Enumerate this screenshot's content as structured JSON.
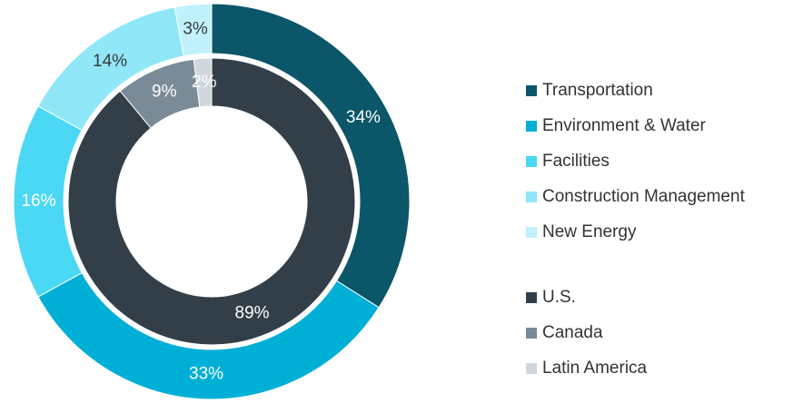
{
  "chart_data": {
    "type": "donut",
    "rings": [
      {
        "categories": [
          "Transportation",
          "Environment & Water",
          "Facilities",
          "Construction Management",
          "New Energy"
        ],
        "values": [
          34,
          33,
          16,
          14,
          3
        ],
        "value_labels": [
          "34%",
          "33%",
          "16%",
          "14%",
          "3%"
        ],
        "colors": [
          "#0b5668",
          "#00afd6",
          "#4ad8f4",
          "#8fe7f8",
          "#bff2fc"
        ],
        "label_colors": [
          "#ffffff",
          "#ffffff",
          "#ffffff",
          "#3a3a3a",
          "#3a3a3a"
        ]
      },
      {
        "categories": [
          "U.S.",
          "Canada",
          "Latin America"
        ],
        "values": [
          89,
          9,
          2
        ],
        "value_labels": [
          "89%",
          "9%",
          "2%"
        ],
        "colors": [
          "#333f48",
          "#7a8b97",
          "#d0d8de"
        ],
        "label_colors": [
          "#ffffff",
          "#ffffff",
          "#ffffff"
        ]
      }
    ],
    "legend": "right"
  }
}
